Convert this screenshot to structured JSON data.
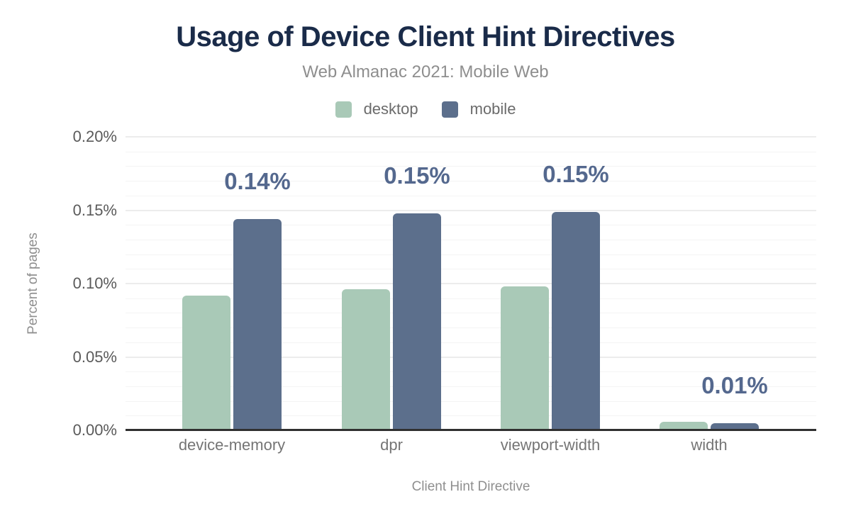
{
  "colors": {
    "title": "#1a2b49",
    "subtitle": "#8e8e8e",
    "axis_title": "#8f8f8f",
    "y_tick_label": "#5a5a5a",
    "x_tick_label": "#757575",
    "bar_value_label": "#54688e",
    "axis_line": "#303030",
    "grid_major": "#ececec",
    "grid_minor": "#f4f4f4",
    "desktop": "#a9c9b7",
    "mobile": "#5c6f8c"
  },
  "chart_data": {
    "type": "bar",
    "title": "Usage of Device Client Hint Directives",
    "subtitle": "Web Almanac 2021: Mobile Web",
    "categories": [
      "device-memory",
      "dpr",
      "viewport-width",
      "width"
    ],
    "series": [
      {
        "name": "desktop",
        "color": "#a9c9b7",
        "values": [
          0.092,
          0.096,
          0.098,
          0.006
        ]
      },
      {
        "name": "mobile",
        "color": "#5c6f8c",
        "values": [
          0.144,
          0.148,
          0.149,
          0.005
        ]
      }
    ],
    "bar_value_labels": {
      "series": "mobile",
      "values": [
        "0.14%",
        "0.15%",
        "0.15%",
        "0.01%"
      ]
    },
    "xlabel": "Client Hint Directive",
    "ylabel": "Percent of pages",
    "ylim": [
      0,
      0.2
    ],
    "yticks": [
      {
        "value": 0.0,
        "label": "0.00%"
      },
      {
        "value": 0.05,
        "label": "0.05%"
      },
      {
        "value": 0.1,
        "label": "0.10%"
      },
      {
        "value": 0.15,
        "label": "0.15%"
      },
      {
        "value": 0.2,
        "label": "0.20%"
      }
    ],
    "grid": {
      "horizontal": true,
      "major_step": 0.05,
      "minor_step": 0.01
    },
    "legend_position": "top"
  }
}
